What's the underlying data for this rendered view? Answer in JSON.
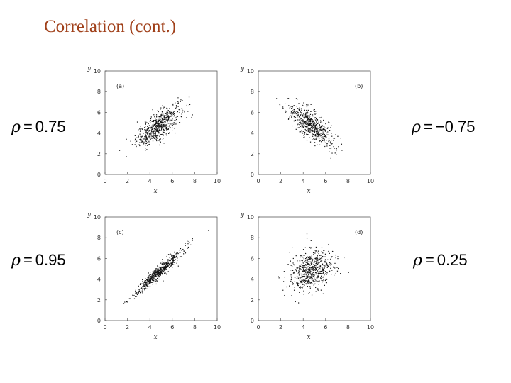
{
  "slide": {
    "title": "Correlation (cont.)"
  },
  "labels": [
    {
      "symbol": "ρ",
      "eq": "=",
      "value": "0.75"
    },
    {
      "symbol": "ρ",
      "eq": "=",
      "value": "−0.75"
    },
    {
      "symbol": "ρ",
      "eq": "=",
      "value": "0.95"
    },
    {
      "symbol": "ρ",
      "eq": "=",
      "value": "0.25"
    }
  ],
  "chart_data": [
    {
      "type": "scatter",
      "panel": "(a)",
      "rho": 0.75,
      "xlabel": "x",
      "ylabel": "y",
      "xlim": [
        0,
        10
      ],
      "ylim": [
        0,
        10
      ],
      "xticks": [
        0,
        2,
        4,
        6,
        8,
        10
      ],
      "yticks": [
        0,
        2,
        4,
        6,
        8,
        10
      ],
      "center": [
        4.8,
        4.7
      ],
      "sd": [
        1.0,
        1.0
      ],
      "n": 600,
      "grid": false
    },
    {
      "type": "scatter",
      "panel": "(b)",
      "rho": -0.75,
      "xlabel": "x",
      "ylabel": "y",
      "xlim": [
        0,
        10
      ],
      "ylim": [
        0,
        10
      ],
      "xticks": [
        0,
        2,
        4,
        6,
        8,
        10
      ],
      "yticks": [
        0,
        2,
        4,
        6,
        8,
        10
      ],
      "center": [
        4.7,
        4.8
      ],
      "sd": [
        1.0,
        1.0
      ],
      "n": 600,
      "grid": false
    },
    {
      "type": "scatter",
      "panel": "(c)",
      "rho": 0.95,
      "xlabel": "x",
      "ylabel": "y",
      "xlim": [
        0,
        10
      ],
      "ylim": [
        0,
        10
      ],
      "xticks": [
        0,
        2,
        4,
        6,
        8,
        10
      ],
      "yticks": [
        0,
        2,
        4,
        6,
        8,
        10
      ],
      "center": [
        4.8,
        4.7
      ],
      "sd": [
        1.0,
        1.0
      ],
      "n": 600,
      "grid": false
    },
    {
      "type": "scatter",
      "panel": "(d)",
      "rho": 0.25,
      "xlabel": "x",
      "ylabel": "y",
      "xlim": [
        0,
        10
      ],
      "ylim": [
        0,
        10
      ],
      "xticks": [
        0,
        2,
        4,
        6,
        8,
        10
      ],
      "yticks": [
        0,
        2,
        4,
        6,
        8,
        10
      ],
      "center": [
        4.7,
        4.8
      ],
      "sd": [
        1.0,
        1.0
      ],
      "n": 600,
      "grid": false
    }
  ]
}
